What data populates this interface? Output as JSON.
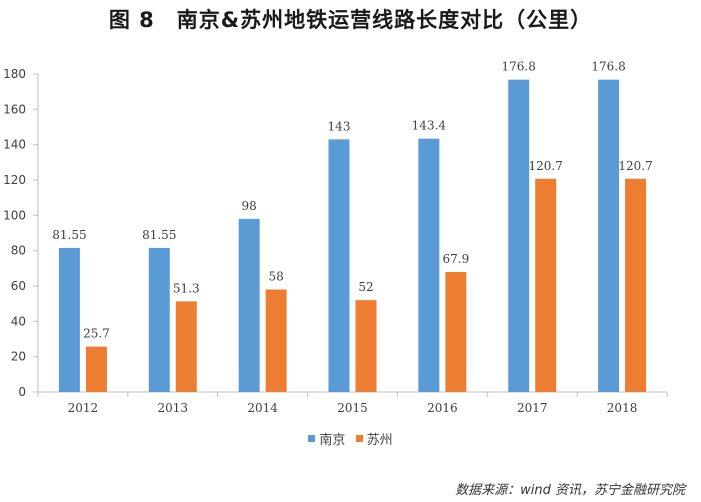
{
  "chart_data": {
    "type": "bar",
    "title": "图 8　南京&苏州地铁运营线路长度对比（公里）",
    "categories": [
      "2012",
      "2013",
      "2014",
      "2015",
      "2016",
      "2017",
      "2018"
    ],
    "series": [
      {
        "name": "南京",
        "color": "#5b9bd5",
        "values": [
          81.55,
          81.55,
          98,
          143,
          143.4,
          176.8,
          176.8
        ],
        "labels": [
          "81.55",
          "81.55",
          "98",
          "143",
          "143.4",
          "176.8",
          "176.8"
        ]
      },
      {
        "name": "苏州",
        "color": "#ed7d31",
        "values": [
          25.7,
          51.3,
          58,
          52,
          67.9,
          120.7,
          120.7
        ],
        "labels": [
          "25.7",
          "51.3",
          "58",
          "52",
          "67.9",
          "120.7",
          "120.7"
        ]
      }
    ],
    "yticks": [
      "0",
      "20",
      "40",
      "60",
      "80",
      "100",
      "120",
      "140",
      "160",
      "180"
    ],
    "ylim": [
      0,
      180
    ],
    "xlabel": "",
    "ylabel": "",
    "legend_position": "bottom"
  },
  "source": "数据来源：wind 资讯，苏宁金融研究院"
}
